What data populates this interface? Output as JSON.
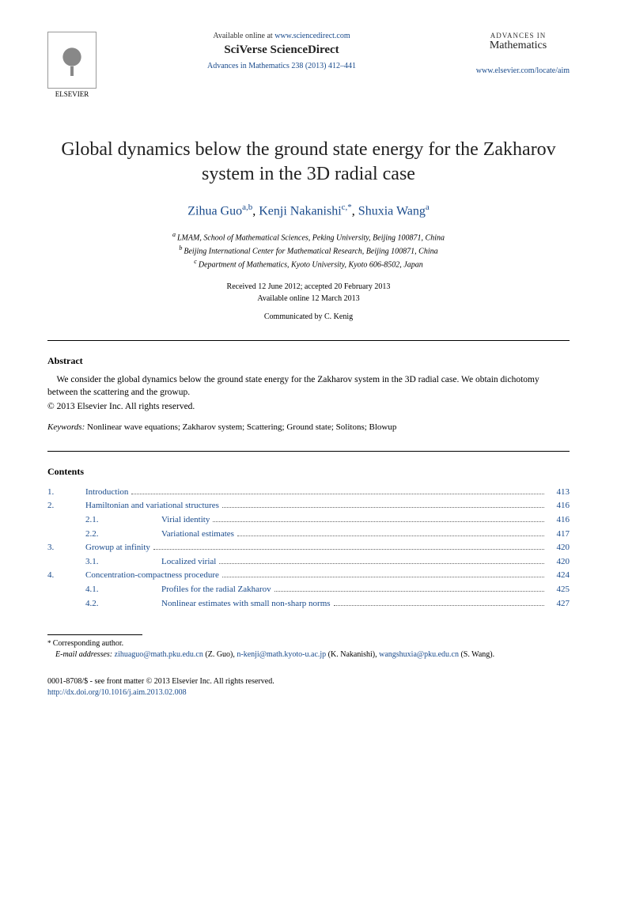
{
  "header": {
    "publisher": "ELSEVIER",
    "available_text": "Available online at ",
    "available_url": "www.sciencedirect.com",
    "platform": "SciVerse ScienceDirect",
    "journal_ref_text": "Advances in Mathematics 238 (2013) 412–441",
    "journal_small": "ADVANCES IN",
    "journal_large": "Mathematics",
    "locate_url": "www.elsevier.com/locate/aim"
  },
  "title": "Global dynamics below the ground state energy for the Zakharov system in the 3D radial case",
  "authors": [
    {
      "name": "Zihua Guo",
      "affil": "a,b"
    },
    {
      "name": "Kenji Nakanishi",
      "affil": "c,*"
    },
    {
      "name": "Shuxia Wang",
      "affil": "a"
    }
  ],
  "affiliations": {
    "a": "LMAM, School of Mathematical Sciences, Peking University, Beijing 100871, China",
    "b": "Beijing International Center for Mathematical Research, Beijing 100871, China",
    "c": "Department of Mathematics, Kyoto University, Kyoto 606-8502, Japan"
  },
  "dates": {
    "received_accepted": "Received 12 June 2012; accepted 20 February 2013",
    "online": "Available online 12 March 2013"
  },
  "communicated": "Communicated by C. Kenig",
  "abstract": {
    "heading": "Abstract",
    "text": "We consider the global dynamics below the ground state energy for the Zakharov system in the 3D radial case. We obtain dichotomy between the scattering and the growup.",
    "copyright": "© 2013 Elsevier Inc. All rights reserved."
  },
  "keywords": {
    "label": "Keywords:",
    "text": " Nonlinear wave equations; Zakharov system; Scattering; Ground state; Solitons; Blowup"
  },
  "contents": {
    "heading": "Contents",
    "items": [
      {
        "num": "1.",
        "title": "Introduction",
        "page": "413",
        "sub": false
      },
      {
        "num": "2.",
        "title": "Hamiltonian and variational structures",
        "page": "416",
        "sub": false
      },
      {
        "num": "2.1.",
        "title": "Virial identity",
        "page": "416",
        "sub": true
      },
      {
        "num": "2.2.",
        "title": "Variational estimates",
        "page": "417",
        "sub": true
      },
      {
        "num": "3.",
        "title": "Growup at infinity",
        "page": "420",
        "sub": false
      },
      {
        "num": "3.1.",
        "title": "Localized virial",
        "page": "420",
        "sub": true
      },
      {
        "num": "4.",
        "title": "Concentration-compactness procedure",
        "page": "424",
        "sub": false
      },
      {
        "num": "4.1.",
        "title": "Profiles for the radial Zakharov",
        "page": "425",
        "sub": true
      },
      {
        "num": "4.2.",
        "title": "Nonlinear estimates with small non-sharp norms",
        "page": "427",
        "sub": true
      }
    ]
  },
  "footnotes": {
    "corresponding": "Corresponding author.",
    "email_label": "E-mail addresses:",
    "emails": [
      {
        "addr": "zihuaguo@math.pku.edu.cn",
        "who": "(Z. Guo)"
      },
      {
        "addr": "n-kenji@math.kyoto-u.ac.jp",
        "who": "(K. Nakanishi)"
      },
      {
        "addr": "wangshuxia@pku.edu.cn",
        "who": "(S. Wang)"
      }
    ]
  },
  "bottom": {
    "issn_line": "0001-8708/$ - see front matter © 2013 Elsevier Inc. All rights reserved.",
    "doi": "http://dx.doi.org/10.1016/j.aim.2013.02.008"
  }
}
